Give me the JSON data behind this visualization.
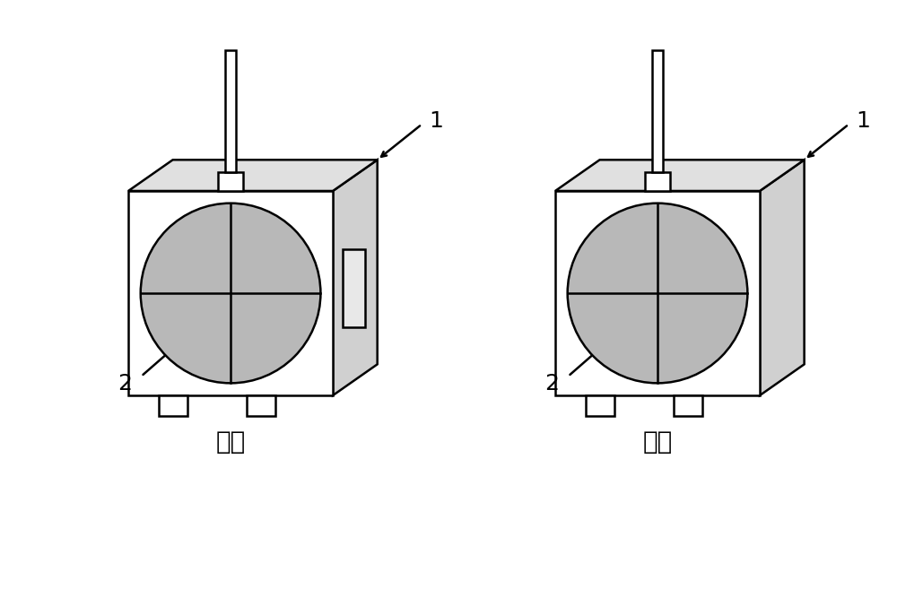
{
  "bg_color": "#ffffff",
  "line_color": "#000000",
  "fill_white": "#ffffff",
  "fill_light_gray": "#b8b8b8",
  "fill_top_gray": "#e0e0e0",
  "fill_right_gray": "#d0d0d0",
  "fill_side_rect": "#e8e8e8",
  "label_1": "1",
  "label_2": "2",
  "label_front": "正面",
  "label_back": "背面",
  "label_fontsize": 20,
  "number_fontsize": 18,
  "fig_width": 10.0,
  "fig_height": 6.57,
  "dpi": 100,
  "lw": 1.8
}
